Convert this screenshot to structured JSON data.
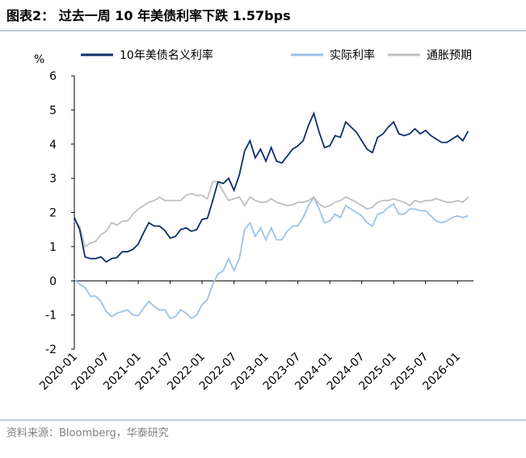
{
  "chart_data": {
    "type": "line",
    "title": "图表2：  过去一周 10 年美债利率下跌 1.57bps",
    "y_label": "%",
    "source": "资料来源：Bloomberg，华泰研究",
    "x": [
      "2020-01",
      "2020-02",
      "2020-03",
      "2020-04",
      "2020-05",
      "2020-06",
      "2020-07",
      "2020-08",
      "2020-09",
      "2020-10",
      "2020-11",
      "2020-12",
      "2021-01",
      "2021-02",
      "2021-03",
      "2021-04",
      "2021-05",
      "2021-06",
      "2021-07",
      "2021-08",
      "2021-09",
      "2021-10",
      "2021-11",
      "2021-12",
      "2022-01",
      "2022-02",
      "2022-03",
      "2022-04",
      "2022-05",
      "2022-06",
      "2022-07",
      "2022-08",
      "2022-09",
      "2022-10",
      "2022-11",
      "2022-12",
      "2023-01",
      "2023-02",
      "2023-03",
      "2023-04",
      "2023-05",
      "2023-06",
      "2023-07",
      "2023-08",
      "2023-09",
      "2023-10",
      "2023-11",
      "2023-12",
      "2024-01",
      "2024-02",
      "2024-03",
      "2024-04",
      "2024-05",
      "2024-06",
      "2024-07",
      "2024-08",
      "2024-09",
      "2024-10",
      "2024-11",
      "2024-12",
      "2025-01",
      "2025-02",
      "2025-03",
      "2025-04",
      "2025-05",
      "2025-06",
      "2025-07",
      "2025-08",
      "2025-09",
      "2025-10",
      "2025-11",
      "2025-12",
      "2026-01",
      "2026-02",
      "2026-03"
    ],
    "series": [
      {
        "name": "10年美债名义利率",
        "color": "#0b2f6b",
        "values": [
          1.85,
          1.5,
          0.7,
          0.65,
          0.65,
          0.7,
          0.55,
          0.65,
          0.68,
          0.85,
          0.85,
          0.92,
          1.07,
          1.4,
          1.7,
          1.6,
          1.6,
          1.47,
          1.25,
          1.3,
          1.5,
          1.55,
          1.45,
          1.5,
          1.8,
          1.83,
          2.35,
          2.9,
          2.85,
          3.0,
          2.65,
          3.1,
          3.8,
          4.1,
          3.6,
          3.85,
          3.5,
          3.9,
          3.5,
          3.45,
          3.65,
          3.85,
          3.95,
          4.1,
          4.55,
          4.9,
          4.35,
          3.9,
          3.95,
          4.25,
          4.2,
          4.65,
          4.5,
          4.35,
          4.1,
          3.85,
          3.75,
          4.2,
          4.3,
          4.5,
          4.65,
          4.3,
          4.25,
          4.3,
          4.45,
          4.3,
          4.4,
          4.25,
          4.15,
          4.05,
          4.05,
          4.15,
          4.25,
          4.1,
          4.38
        ]
      },
      {
        "name": "实际利率",
        "color": "#9dc3e6",
        "values": [
          0.05,
          -0.1,
          -0.2,
          -0.45,
          -0.45,
          -0.6,
          -0.9,
          -1.05,
          -0.95,
          -0.9,
          -0.85,
          -1.0,
          -1.02,
          -0.8,
          -0.6,
          -0.75,
          -0.85,
          -0.85,
          -1.1,
          -1.05,
          -0.85,
          -0.95,
          -1.1,
          -1.0,
          -0.7,
          -0.55,
          -0.1,
          0.2,
          0.3,
          0.65,
          0.3,
          0.65,
          1.5,
          1.7,
          1.3,
          1.55,
          1.2,
          1.55,
          1.2,
          1.2,
          1.45,
          1.6,
          1.6,
          1.85,
          2.2,
          2.45,
          2.1,
          1.7,
          1.75,
          1.95,
          1.85,
          2.2,
          2.1,
          2.0,
          1.9,
          1.7,
          1.6,
          1.95,
          2.0,
          2.15,
          2.25,
          1.95,
          1.95,
          2.1,
          2.1,
          2.05,
          2.05,
          1.9,
          1.75,
          1.7,
          1.75,
          1.85,
          1.9,
          1.85,
          1.9
        ]
      },
      {
        "name": "通胀预期",
        "color": "#bfbfbf",
        "values": [
          1.75,
          1.6,
          1.0,
          1.1,
          1.15,
          1.35,
          1.45,
          1.7,
          1.63,
          1.75,
          1.75,
          1.95,
          2.1,
          2.2,
          2.3,
          2.35,
          2.45,
          2.35,
          2.35,
          2.35,
          2.35,
          2.5,
          2.55,
          2.5,
          2.5,
          2.4,
          2.9,
          2.9,
          2.6,
          2.35,
          2.4,
          2.45,
          2.2,
          2.45,
          2.35,
          2.3,
          2.3,
          2.4,
          2.3,
          2.25,
          2.2,
          2.22,
          2.3,
          2.3,
          2.35,
          2.45,
          2.25,
          2.15,
          2.2,
          2.3,
          2.35,
          2.45,
          2.38,
          2.3,
          2.2,
          2.1,
          2.15,
          2.3,
          2.35,
          2.35,
          2.4,
          2.35,
          2.3,
          2.2,
          2.35,
          2.3,
          2.35,
          2.35,
          2.4,
          2.35,
          2.3,
          2.3,
          2.35,
          2.3,
          2.45
        ]
      }
    ],
    "xlim": [
      "2020-01",
      "2026-04"
    ],
    "xticks": [
      "2020-01",
      "2020-07",
      "2021-01",
      "2021-07",
      "2022-01",
      "2022-07",
      "2023-01",
      "2023-07",
      "2024-01",
      "2024-07",
      "2025-01",
      "2025-07",
      "2026-01"
    ],
    "ylim": [
      -2,
      6
    ],
    "yticks": [
      -2,
      -1,
      0,
      1,
      2,
      3,
      4,
      5,
      6
    ],
    "legend": "top"
  }
}
